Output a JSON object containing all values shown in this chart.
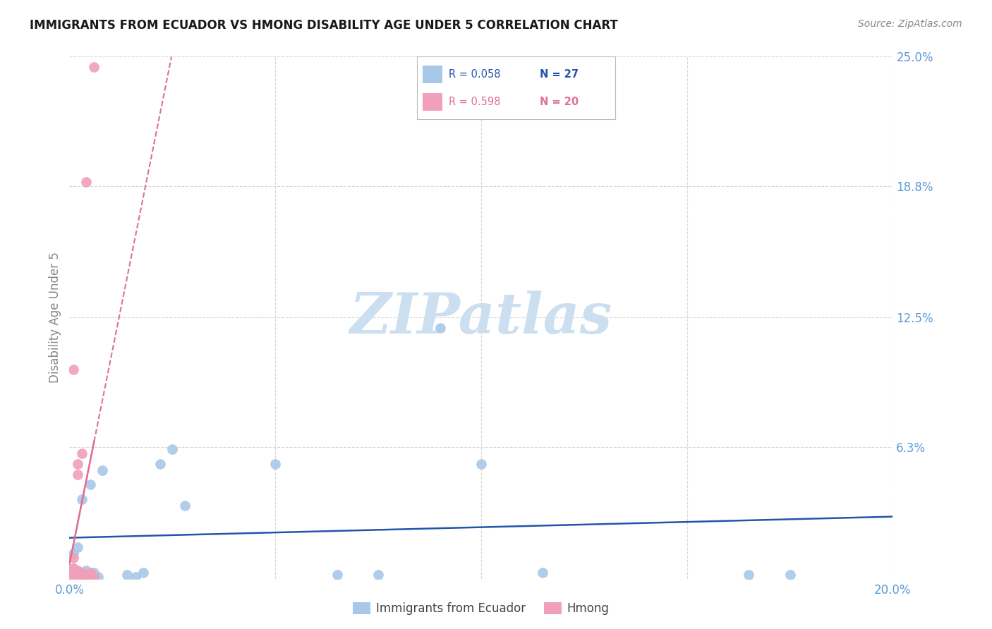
{
  "title": "IMMIGRANTS FROM ECUADOR VS HMONG DISABILITY AGE UNDER 5 CORRELATION CHART",
  "source": "Source: ZipAtlas.com",
  "ylabel": "Disability Age Under 5",
  "xlim": [
    0.0,
    0.2
  ],
  "ylim": [
    0.0,
    0.25
  ],
  "ytick_labels": [
    "25.0%",
    "18.8%",
    "12.5%",
    "6.3%"
  ],
  "ytick_values": [
    0.25,
    0.188,
    0.125,
    0.063
  ],
  "ecuador_color": "#a8c8e8",
  "hmong_color": "#f0a0b8",
  "ecuador_R": 0.058,
  "ecuador_N": 27,
  "hmong_R": 0.598,
  "hmong_N": 20,
  "ecuador_x": [
    0.001,
    0.001,
    0.002,
    0.002,
    0.003,
    0.003,
    0.004,
    0.004,
    0.005,
    0.005,
    0.006,
    0.007,
    0.008,
    0.014,
    0.016,
    0.018,
    0.022,
    0.025,
    0.028,
    0.05,
    0.065,
    0.075,
    0.09,
    0.1,
    0.115,
    0.165,
    0.175
  ],
  "ecuador_y": [
    0.005,
    0.012,
    0.002,
    0.015,
    0.001,
    0.038,
    0.001,
    0.004,
    0.002,
    0.045,
    0.003,
    0.001,
    0.052,
    0.002,
    0.001,
    0.003,
    0.055,
    0.062,
    0.035,
    0.055,
    0.002,
    0.002,
    0.12,
    0.055,
    0.003,
    0.002,
    0.002
  ],
  "hmong_x": [
    0.001,
    0.001,
    0.001,
    0.001,
    0.001,
    0.002,
    0.002,
    0.002,
    0.002,
    0.003,
    0.003,
    0.003,
    0.004,
    0.004,
    0.004,
    0.005,
    0.005,
    0.005,
    0.006,
    0.006
  ],
  "hmong_y": [
    0.001,
    0.003,
    0.005,
    0.01,
    0.1,
    0.001,
    0.004,
    0.05,
    0.055,
    0.001,
    0.003,
    0.06,
    0.001,
    0.002,
    0.19,
    0.001,
    0.002,
    0.003,
    0.001,
    0.245
  ],
  "ecuador_line_color": "#2255aa",
  "hmong_line_color": "#e07090",
  "background_color": "#ffffff",
  "grid_color": "#d8d8d8",
  "watermark_zip": "ZIP",
  "watermark_atlas": "atlas",
  "watermark_color": "#ccdff0"
}
